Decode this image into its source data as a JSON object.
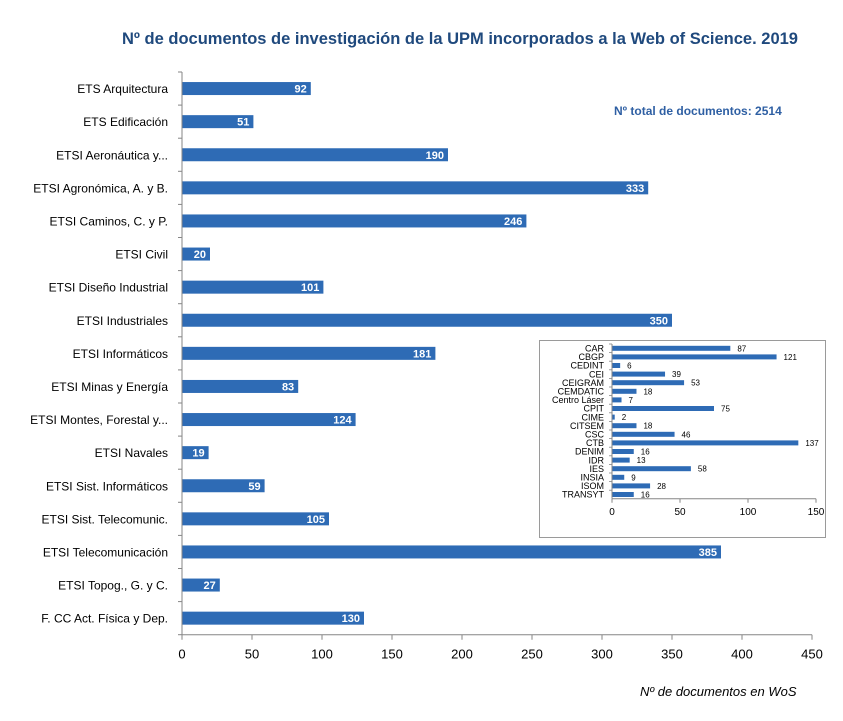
{
  "chart_data": [
    {
      "type": "bar",
      "orientation": "horizontal",
      "title": "Nº de documentos de investigación de la UPM incorporados a la Web of Science. 2019",
      "annotation": "Nº total de documentos:  2514",
      "xlabel": "Nº de documentos en WoS",
      "ylabel": "",
      "xlim": [
        0,
        450
      ],
      "xticks": [
        0,
        50,
        100,
        150,
        200,
        250,
        300,
        350,
        400,
        450
      ],
      "grid": false,
      "color": "#2e6bb5",
      "categories": [
        "ETS Arquitectura",
        "ETS Edificación",
        "ETSI Aeronáutica y...",
        "ETSI Agronómica, A. y B.",
        "ETSI Caminos, C. y P.",
        "ETSI Civil",
        "ETSI Diseño Industrial",
        "ETSI Industriales",
        "ETSI Informáticos",
        "ETSI Minas y Energía",
        "ETSI Montes, Forestal y...",
        "ETSI Navales",
        "ETSI Sist. Informáticos",
        "ETSI Sist. Telecomunic.",
        "ETSI Telecomunicación",
        "ETSI Topog., G. y C.",
        "F. CC Act. Física y Dep."
      ],
      "values": [
        92,
        51,
        190,
        333,
        246,
        20,
        101,
        350,
        181,
        83,
        124,
        19,
        59,
        105,
        385,
        27,
        130
      ]
    },
    {
      "type": "bar",
      "orientation": "horizontal",
      "title": "",
      "xlim": [
        0,
        150
      ],
      "xticks": [
        0,
        50,
        100,
        150
      ],
      "grid": false,
      "color": "#2e6bb5",
      "categories": [
        "CAR",
        "CBGP",
        "CEDINT",
        "CEI",
        "CEIGRAM",
        "CEMDATIC",
        "Centro Láser",
        "CPIT",
        "CIME",
        "CITSEM",
        "CSC",
        "CTB",
        "DENIM",
        "IDR",
        "IES",
        "INSIA",
        "ISOM",
        "TRANSYT"
      ],
      "values": [
        87,
        121,
        6,
        39,
        53,
        18,
        7,
        75,
        2,
        18,
        46,
        137,
        16,
        13,
        58,
        9,
        28,
        16
      ]
    }
  ]
}
